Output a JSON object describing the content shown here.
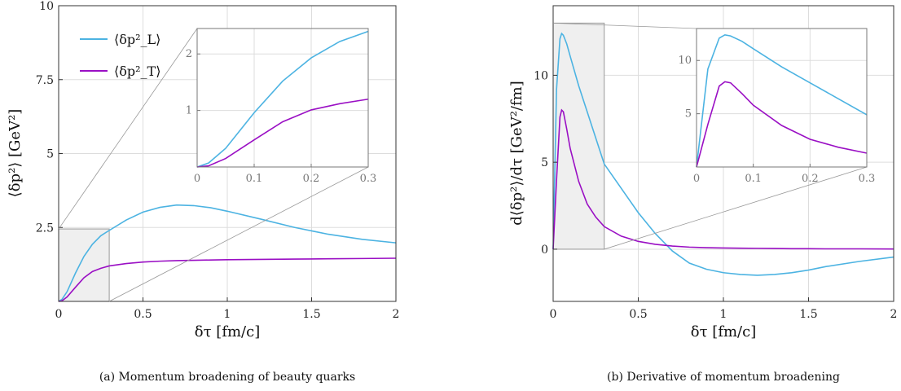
{
  "panels": [
    {
      "caption": "(a) Momentum broadening of beauty quarks",
      "xlabel": "δτ [fm/c]",
      "ylabel": "⟨δp²⟩ [GeV²]",
      "xlim": [
        0,
        2
      ],
      "ylim": [
        0,
        10
      ],
      "xticks": [
        "0",
        "0.5",
        "1",
        "1.5",
        "2"
      ],
      "yticks": [
        "2.5",
        "5",
        "7.5",
        "10"
      ],
      "legend": [
        "⟨δp²_L⟩",
        "⟨δp²_T⟩"
      ],
      "inset": {
        "xlim": [
          0,
          0.3
        ],
        "ylim": [
          0,
          2.45
        ],
        "xticks": [
          "0",
          "0.1",
          "0.2",
          "0.3"
        ],
        "yticks": [
          "1",
          "2"
        ],
        "zoom_box": {
          "x": [
            0,
            0.3
          ],
          "y": [
            0,
            2.45
          ]
        }
      }
    },
    {
      "caption": "(b) Derivative of momentum broadening",
      "xlabel": "δτ [fm/c]",
      "ylabel": "d⟨δp²⟩/dτ [GeV²/fm]",
      "xlim": [
        0,
        2
      ],
      "ylim": [
        -3,
        14
      ],
      "xticks": [
        "0",
        "0.5",
        "1",
        "1.5",
        "2"
      ],
      "yticks": [
        "0",
        "5",
        "10"
      ],
      "inset": {
        "xlim": [
          0,
          0.3
        ],
        "ylim": [
          0,
          13
        ],
        "xticks": [
          "0",
          "0.1",
          "0.2",
          "0.3"
        ],
        "yticks": [
          "5",
          "10"
        ],
        "zoom_box": {
          "x": [
            0,
            0.3
          ],
          "y": [
            0,
            13
          ]
        }
      }
    }
  ],
  "colors": {
    "L": "#4cb3e2",
    "T": "#9a0fc4",
    "grid": "#dddddd",
    "box": "#999999",
    "shade": "#efefef"
  },
  "chart_data": [
    {
      "type": "line",
      "x": [
        0,
        0.02,
        0.05,
        0.1,
        0.15,
        0.2,
        0.25,
        0.3,
        0.4,
        0.5,
        0.6,
        0.7,
        0.8,
        0.9,
        1.0,
        1.2,
        1.4,
        1.6,
        1.8,
        2.0
      ],
      "series": [
        {
          "name": "⟨δp²_L⟩",
          "values": [
            0,
            0.07,
            0.33,
            0.96,
            1.52,
            1.93,
            2.22,
            2.4,
            2.75,
            3.02,
            3.18,
            3.26,
            3.24,
            3.17,
            3.05,
            2.78,
            2.5,
            2.27,
            2.1,
            1.98
          ]
        },
        {
          "name": "⟨δp²_T⟩",
          "values": [
            0,
            0.02,
            0.15,
            0.48,
            0.8,
            1.01,
            1.12,
            1.2,
            1.28,
            1.33,
            1.36,
            1.38,
            1.39,
            1.4,
            1.41,
            1.42,
            1.43,
            1.44,
            1.45,
            1.46
          ]
        }
      ]
    },
    {
      "type": "line",
      "x": [
        0,
        0.02,
        0.04,
        0.05,
        0.06,
        0.08,
        0.1,
        0.15,
        0.2,
        0.25,
        0.3,
        0.4,
        0.5,
        0.6,
        0.7,
        0.8,
        0.9,
        1.0,
        1.1,
        1.2,
        1.3,
        1.4,
        1.5,
        1.6,
        1.8,
        2.0
      ],
      "series": [
        {
          "name": "⟨δp²_L⟩",
          "values": [
            0,
            9.2,
            12.1,
            12.4,
            12.3,
            11.8,
            11.1,
            9.4,
            7.9,
            6.4,
            4.9,
            3.5,
            2.1,
            0.9,
            -0.1,
            -0.8,
            -1.15,
            -1.35,
            -1.45,
            -1.5,
            -1.45,
            -1.35,
            -1.2,
            -1.0,
            -0.7,
            -0.45
          ]
        },
        {
          "name": "⟨δp²_T⟩",
          "values": [
            0,
            4.0,
            7.6,
            8.0,
            7.9,
            6.9,
            5.8,
            3.9,
            2.6,
            1.85,
            1.3,
            0.75,
            0.45,
            0.28,
            0.18,
            0.12,
            0.09,
            0.07,
            0.06,
            0.05,
            0.04,
            0.03,
            0.03,
            0.02,
            0.02,
            0.01
          ]
        }
      ]
    }
  ]
}
